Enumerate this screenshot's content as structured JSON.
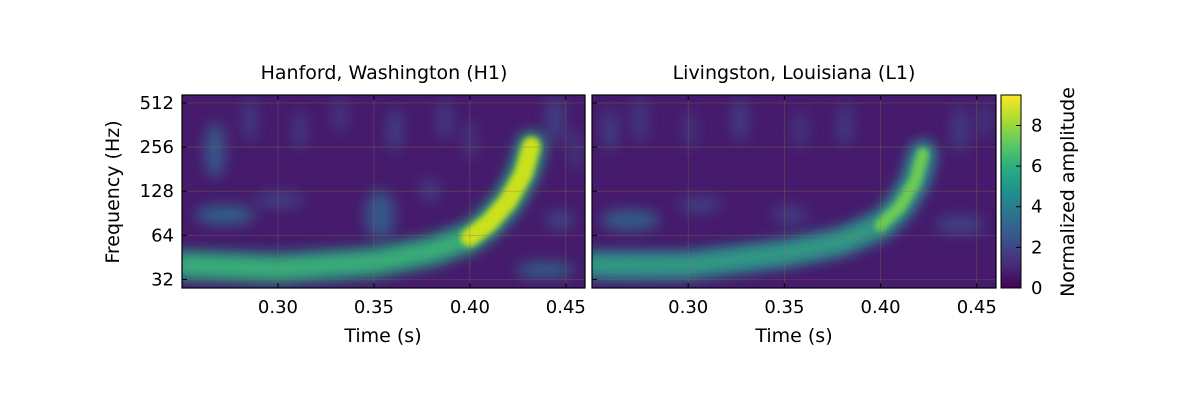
{
  "chart_data": [
    {
      "type": "heatmap",
      "title": "Hanford, Washington (H1)",
      "xlabel": "Time (s)",
      "ylabel": "Frequency (Hz)",
      "y_scale": "log2",
      "xlim": [
        0.25,
        0.46
      ],
      "ylim": [
        28,
        580
      ],
      "xticks": [
        "0.30",
        "0.35",
        "0.40",
        "0.45"
      ],
      "yticks": [
        "32",
        "64",
        "128",
        "256",
        "512"
      ],
      "colormap": "viridis",
      "grid": true,
      "ridge": [
        {
          "t": 0.25,
          "f": 40
        },
        {
          "t": 0.3,
          "f": 38
        },
        {
          "t": 0.35,
          "f": 42
        },
        {
          "t": 0.38,
          "f": 50
        },
        {
          "t": 0.4,
          "f": 62
        },
        {
          "t": 0.41,
          "f": 78
        },
        {
          "t": 0.42,
          "f": 110
        },
        {
          "t": 0.428,
          "f": 170
        },
        {
          "t": 0.432,
          "f": 260
        }
      ],
      "peak": {
        "t": 0.422,
        "f": 130,
        "value": 9.0
      }
    },
    {
      "type": "heatmap",
      "title": "Livingston, Louisiana (L1)",
      "xlabel": "Time (s)",
      "ylabel": "",
      "y_scale": "log2",
      "xlim": [
        0.25,
        0.46
      ],
      "ylim": [
        28,
        580
      ],
      "xticks": [
        "0.30",
        "0.35",
        "0.40",
        "0.45"
      ],
      "yticks": [],
      "colormap": "viridis",
      "grid": true,
      "ridge": [
        {
          "t": 0.25,
          "f": 40
        },
        {
          "t": 0.3,
          "f": 40
        },
        {
          "t": 0.35,
          "f": 48
        },
        {
          "t": 0.38,
          "f": 58
        },
        {
          "t": 0.4,
          "f": 75
        },
        {
          "t": 0.41,
          "f": 100
        },
        {
          "t": 0.418,
          "f": 150
        },
        {
          "t": 0.422,
          "f": 230
        }
      ],
      "peak": {
        "t": 0.415,
        "f": 120,
        "value": 6.5
      }
    }
  ],
  "colorbar": {
    "label": "Normalized amplitude",
    "range": [
      0,
      9.5
    ],
    "ticks": [
      "0",
      "2",
      "4",
      "6",
      "8"
    ],
    "colormap": "viridis"
  }
}
